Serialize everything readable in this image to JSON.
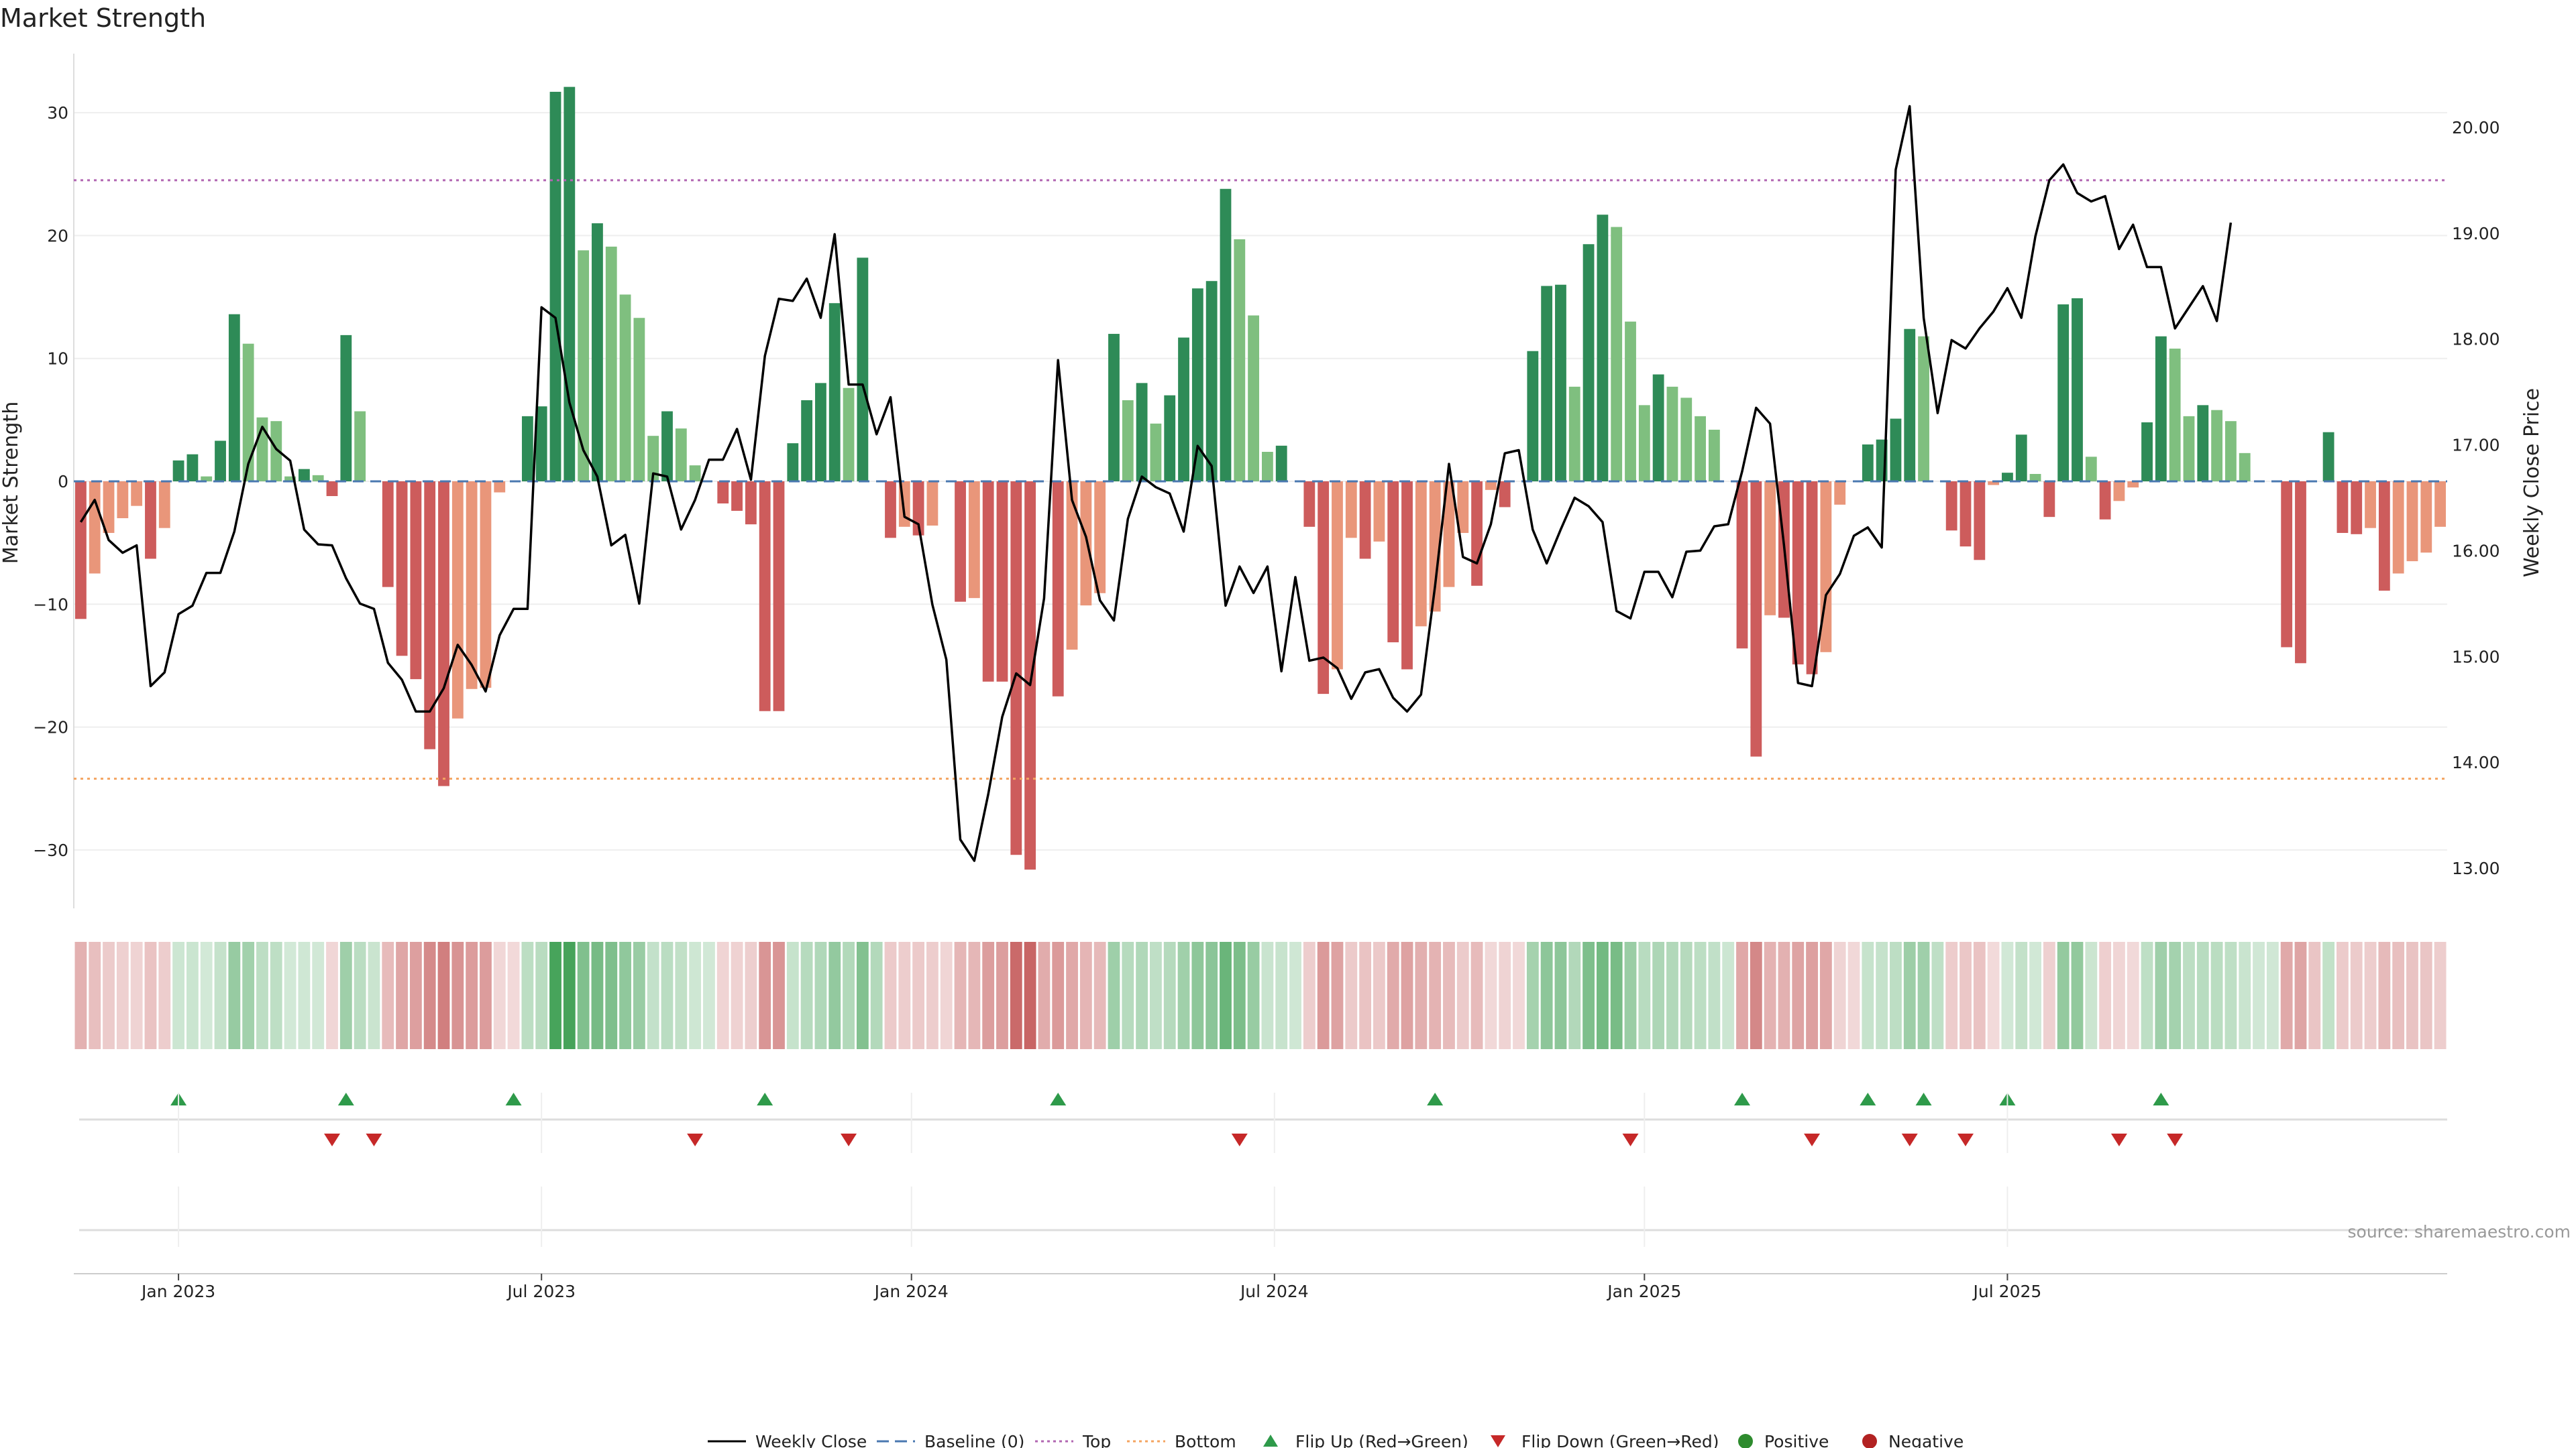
{
  "colors": {
    "pos_strong": "#2e8b57",
    "pos_weak": "#7fbf7f",
    "neg_strong": "#cd5c5c",
    "neg_weak": "#e9967a",
    "line": "#000000",
    "top": "#b266b2",
    "bottom": "#f4a460",
    "baseline": "#4a78b0",
    "flip_up": "#2e9a4a",
    "flip_down": "#c62828",
    "positive": "#2e8b2e",
    "negative": "#b22222"
  },
  "chart_data": {
    "type": "bar",
    "title": "Market Strength",
    "ylabel_left": "Market Strength",
    "ylabel_right": "Weekly Close Price",
    "ylim_left": [
      -35,
      35
    ],
    "yticks_left": [
      30,
      20,
      10,
      0,
      -10,
      -20,
      -30
    ],
    "ytick_labels_left": [
      "30",
      "20",
      "10",
      "0",
      "−10",
      "−20",
      "−30"
    ],
    "ylim_right": [
      12.65,
      20.7
    ],
    "yticks_right": [
      20,
      19,
      18,
      17,
      16,
      15,
      14,
      13
    ],
    "ytick_labels_right": [
      "20.00",
      "19.00",
      "18.00",
      "17.00",
      "16.00",
      "15.00",
      "14.00",
      "13.00"
    ],
    "x_start": "2022-11-14",
    "period_days": 7,
    "xticks": [
      {
        "label": "Jan 2023",
        "week": 7
      },
      {
        "label": "Jul 2023",
        "week": 33
      },
      {
        "label": "Jan 2024",
        "week": 59.5
      },
      {
        "label": "Jul 2024",
        "week": 85.5
      },
      {
        "label": "Jan 2025",
        "week": 112
      },
      {
        "label": "Jul 2025",
        "week": 138
      }
    ],
    "top_level": 24.5,
    "bottom_level": -24.2,
    "series": [
      {
        "name": "Market Strength",
        "values": [
          -11.2,
          -7.5,
          -4.2,
          -3,
          -2,
          -6.3,
          -3.8,
          1.7,
          2.2,
          0.4,
          3.3,
          13.6,
          11.2,
          5.2,
          4.9,
          0.4,
          1,
          0.5,
          -1.2,
          11.9,
          5.7,
          0,
          -8.6,
          -14.2,
          -16.1,
          -21.8,
          -24.8,
          -19.3,
          -16.9,
          -16.8,
          -0.9,
          0,
          5.3,
          6.1,
          31.7,
          32.1,
          18.8,
          21,
          19.1,
          15.2,
          13.3,
          3.7,
          5.7,
          4.3,
          1.3,
          0,
          -1.8,
          -2.4,
          -3.5,
          -18.7,
          -18.7,
          3.1,
          6.6,
          8,
          14.5,
          7.6,
          18.2,
          0,
          -4.6,
          -3.7,
          -4.4,
          -3.6,
          0,
          -9.8,
          -9.5,
          -16.3,
          -16.3,
          -30.4,
          -31.6,
          0,
          -17.5,
          -13.7,
          -10.1,
          -9.1,
          12,
          6.6,
          8,
          4.7,
          7,
          11.7,
          15.7,
          16.3,
          23.8,
          19.7,
          13.5,
          2.4,
          2.9,
          0,
          -3.7,
          -17.3,
          -15.3,
          -4.6,
          -6.3,
          -4.9,
          -13.1,
          -15.3,
          -11.8,
          -10.6,
          -8.6,
          -4.2,
          -8.5,
          -0.7,
          -2.1,
          0,
          10.6,
          15.9,
          16,
          7.7,
          19.3,
          21.7,
          20.7,
          13,
          6.2,
          8.7,
          7.7,
          6.8,
          5.3,
          4.2,
          0,
          -13.6,
          -22.4,
          -10.9,
          -11.1,
          -14.9,
          -15.7,
          -13.9,
          -1.9,
          0,
          3,
          3.4,
          5.1,
          12.4,
          11.8,
          0,
          -4,
          -5.3,
          -6.4,
          -0.3,
          0.7,
          3.8,
          0.6,
          -2.9,
          14.4,
          14.9,
          2,
          -3.1,
          -1.6,
          -0.5,
          4.8,
          11.8,
          10.8,
          5.3,
          6.2,
          5.8,
          4.9,
          2.3,
          0,
          0,
          -13.5,
          -14.8,
          0,
          4,
          -4.2,
          -4.3,
          -3.8,
          -8.9,
          -7.5,
          -6.5,
          -5.8,
          -3.7
        ]
      },
      {
        "name": "Weekly Close",
        "axis": "right",
        "values": [
          16.27,
          16.48,
          16.1,
          15.98,
          16.05,
          14.72,
          14.85,
          15.4,
          15.48,
          15.79,
          15.79,
          16.18,
          16.82,
          17.17,
          16.96,
          16.85,
          16.2,
          16.06,
          16.05,
          15.74,
          15.5,
          15.45,
          14.94,
          14.78,
          14.48,
          14.48,
          14.7,
          15.11,
          14.92,
          14.67,
          15.2,
          15.45,
          15.45,
          18.3,
          18.2,
          17.4,
          16.95,
          16.7,
          16.05,
          16.15,
          15.5,
          16.73,
          16.7,
          16.2,
          16.48,
          16.86,
          16.86,
          17.15,
          16.67,
          17.84,
          18.38,
          18.36,
          18.57,
          18.2,
          18.99,
          17.57,
          17.57,
          17.1,
          17.45,
          16.32,
          16.25,
          15.49,
          14.97,
          13.27,
          13.07,
          13.7,
          14.43,
          14.84,
          14.73,
          15.55,
          17.8,
          16.48,
          16.13,
          15.53,
          15.34,
          16.3,
          16.7,
          16.6,
          16.54,
          16.18,
          16.99,
          16.8,
          15.48,
          15.85,
          15.6,
          15.85,
          14.86,
          15.75,
          14.96,
          14.99,
          14.89,
          14.6,
          14.85,
          14.88,
          14.61,
          14.48,
          14.64,
          15.66,
          16.82,
          15.94,
          15.88,
          16.25,
          16.92,
          16.95,
          16.2,
          15.88,
          16.2,
          16.5,
          16.42,
          16.27,
          15.43,
          15.36,
          15.8,
          15.8,
          15.56,
          15.99,
          16,
          16.23,
          16.25,
          16.75,
          17.35,
          17.2,
          16.05,
          14.75,
          14.72,
          15.58,
          15.78,
          16.14,
          16.22,
          16.03,
          19.6,
          20.2,
          18.2,
          17.3,
          17.99,
          17.91,
          18.1,
          18.26,
          18.48,
          18.2,
          18.97,
          19.5,
          19.65,
          19.38,
          19.3,
          19.35,
          18.85,
          19.08,
          18.68,
          18.68,
          18.1,
          18.3,
          18.5,
          18.17,
          19.1
        ]
      }
    ],
    "strip_labels": [],
    "flip_up_weeks": [
      7,
      19,
      31,
      49,
      70,
      97,
      119,
      128,
      132,
      138,
      149
    ],
    "flip_down_weeks": [
      18,
      21,
      44,
      55,
      83,
      111,
      124,
      131,
      135,
      146,
      150
    ],
    "legend": [
      "Weekly Close",
      "Baseline (0)",
      "Top",
      "Bottom",
      "Flip Up (Red→Green)",
      "Flip Down (Green→Red)",
      "Positive",
      "Negative"
    ],
    "source": "source: sharemaestro.com"
  }
}
